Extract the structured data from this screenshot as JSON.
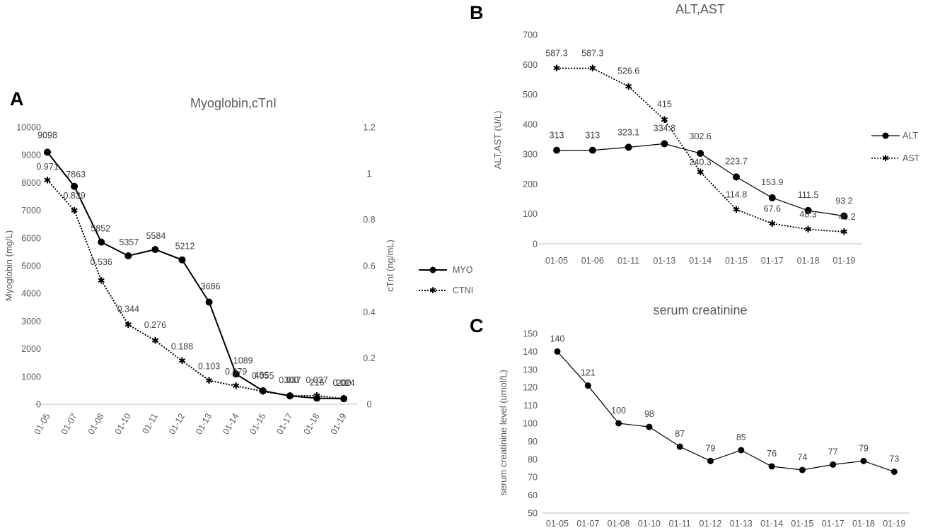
{
  "chart_data": [
    {
      "panel": "A",
      "type": "line",
      "title": "Myoglobin,cTnI",
      "xlabel": "",
      "ylabel": "Myoglobin (mg/L)",
      "y2label": "cTnI (ng/mL)",
      "categories": [
        "01-05",
        "01-07",
        "01-08",
        "01-10",
        "01-11",
        "01-12",
        "01-13",
        "01-14",
        "01-15",
        "01-17",
        "01-18",
        "01-19"
      ],
      "ylim": [
        0,
        10000
      ],
      "yticks": [
        0,
        1000,
        2000,
        3000,
        4000,
        5000,
        6000,
        7000,
        8000,
        9000,
        10000
      ],
      "y2lim": [
        0,
        1.2
      ],
      "y2ticks": [
        0,
        0.2,
        0.4,
        0.6,
        0.8,
        1,
        1.2
      ],
      "legend_position": "right",
      "series": [
        {
          "name": "MYO",
          "axis": "left",
          "style": "solid",
          "values": [
            9098,
            7863,
            5852,
            5357,
            5584,
            5212,
            3686,
            1089,
            485,
            300,
            216,
            200
          ],
          "labels": [
            "9098",
            "7863",
            "5852",
            "5357",
            "5584",
            "5212",
            "3686",
            "1089",
            "485",
            "300",
            "216",
            "200"
          ]
        },
        {
          "name": "CTNI",
          "axis": "right",
          "style": "dotted",
          "values": [
            0.971,
            0.839,
            0.536,
            0.344,
            0.276,
            0.188,
            0.103,
            0.079,
            0.055,
            0.037,
            0.037,
            0.024
          ],
          "labels": [
            "0.971",
            "0.839",
            "0.536",
            "0.344",
            "0.276",
            "0.188",
            "0.103",
            "0.079",
            "0.055",
            "0.037",
            "0.037",
            "0.024"
          ]
        }
      ]
    },
    {
      "panel": "B",
      "type": "line",
      "title": "ALT,AST",
      "xlabel": "",
      "ylabel": "ALT,AST (U/L)",
      "categories": [
        "01-05",
        "01-06",
        "01-11",
        "01-13",
        "01-14",
        "01-15",
        "01-17",
        "01-18",
        "01-19"
      ],
      "ylim": [
        0,
        700
      ],
      "yticks": [
        0,
        100,
        200,
        300,
        400,
        500,
        600,
        700
      ],
      "legend_position": "right",
      "series": [
        {
          "name": "ALT",
          "style": "solid",
          "values": [
            313,
            313,
            323.1,
            334.8,
            302.6,
            223.7,
            153.9,
            111.5,
            93.2
          ],
          "labels": [
            "313",
            "313",
            "323.1",
            "334.8",
            "302.6",
            "223.7",
            "153.9",
            "111.5",
            "93.2"
          ]
        },
        {
          "name": "AST",
          "style": "dotted",
          "values": [
            587.3,
            587.3,
            526.6,
            415,
            240.3,
            114.8,
            67.6,
            48.3,
            40.2
          ],
          "labels": [
            "587.3",
            "587.3",
            "526.6",
            "415",
            "240.3",
            "114.8",
            "67.6",
            "48.3",
            "40.2"
          ]
        }
      ]
    },
    {
      "panel": "C",
      "type": "line",
      "title": "serum creatinine",
      "xlabel": "",
      "ylabel": "serum creatinine level (umol/L)",
      "categories": [
        "01-05",
        "01-07",
        "01-08",
        "01-10",
        "01-11",
        "01-12",
        "01-13",
        "01-14",
        "01-15",
        "01-17",
        "01-18",
        "01-19"
      ],
      "ylim": [
        50,
        150
      ],
      "yticks": [
        50,
        60,
        70,
        80,
        90,
        100,
        110,
        120,
        130,
        140,
        150
      ],
      "series": [
        {
          "name": "creatinine",
          "style": "solid",
          "values": [
            140,
            121,
            100,
            98,
            87,
            79,
            85,
            76,
            74,
            77,
            79,
            73
          ],
          "labels": [
            "140",
            "121",
            "100",
            "98",
            "87",
            "79",
            "85",
            "76",
            "74",
            "77",
            "79",
            "73"
          ]
        }
      ]
    }
  ]
}
